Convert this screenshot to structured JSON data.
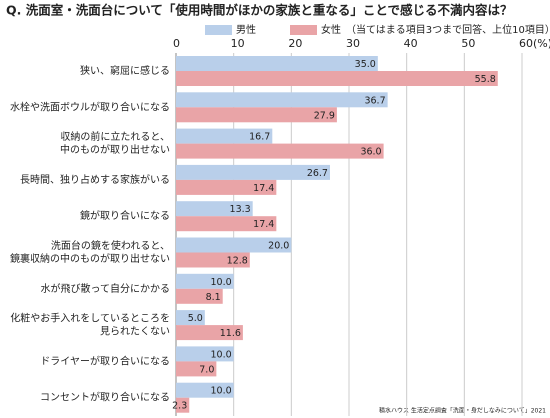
{
  "chart_data": {
    "type": "bar",
    "orientation": "horizontal",
    "title": "Q. 洗面室・洗面台について「使用時間がほかの家族と重なる」ことで感じる不満内容は？",
    "note": "（当てはまる項目3つまで回答、上位10項目）",
    "source": "積水ハウス 生活定点調査「洗面・身だしなみについて」2021",
    "categories": [
      "狭い、窮屈に感じる",
      "水栓や洗面ボウルが取り合いになる",
      "収納の前に立たれると、\n中のものが取り出せない",
      "長時間、独り占めする家族がいる",
      "鏡が取り合いになる",
      "洗面台の鏡を使われると、\n鏡裏収納の中のものが取り出せない",
      "水が飛び散って自分にかかる",
      "化粧やお手入れをしているところを\n見られたくない",
      "ドライヤーが取り合いになる",
      "コンセントが取り合いになる"
    ],
    "series": [
      {
        "name": "男性",
        "color": "#b9cfea",
        "values": [
          35.0,
          36.7,
          16.7,
          26.7,
          13.3,
          20.0,
          10.0,
          5.0,
          10.0,
          10.0
        ],
        "value_labels": [
          "35.0",
          "36.7",
          "16.7",
          "26.7",
          "13.3",
          "20.0",
          "10.0",
          "5.0",
          "10.0",
          "10.0"
        ]
      },
      {
        "name": "女性",
        "color": "#e9a4a7",
        "values": [
          55.8,
          27.9,
          36.0,
          17.4,
          17.4,
          12.8,
          8.1,
          11.6,
          7.0,
          2.3
        ],
        "value_labels": [
          "55.8",
          "27.9",
          "36.0",
          "17.4",
          "17.4",
          "12.8",
          "8.1",
          "11.6",
          "7.0",
          "2.3"
        ]
      }
    ],
    "xlim": [
      0,
      60
    ],
    "xticks": [
      0,
      10,
      20,
      30,
      40,
      50,
      {
        "value": 60,
        "label": "60(%)"
      }
    ],
    "grid": true
  }
}
